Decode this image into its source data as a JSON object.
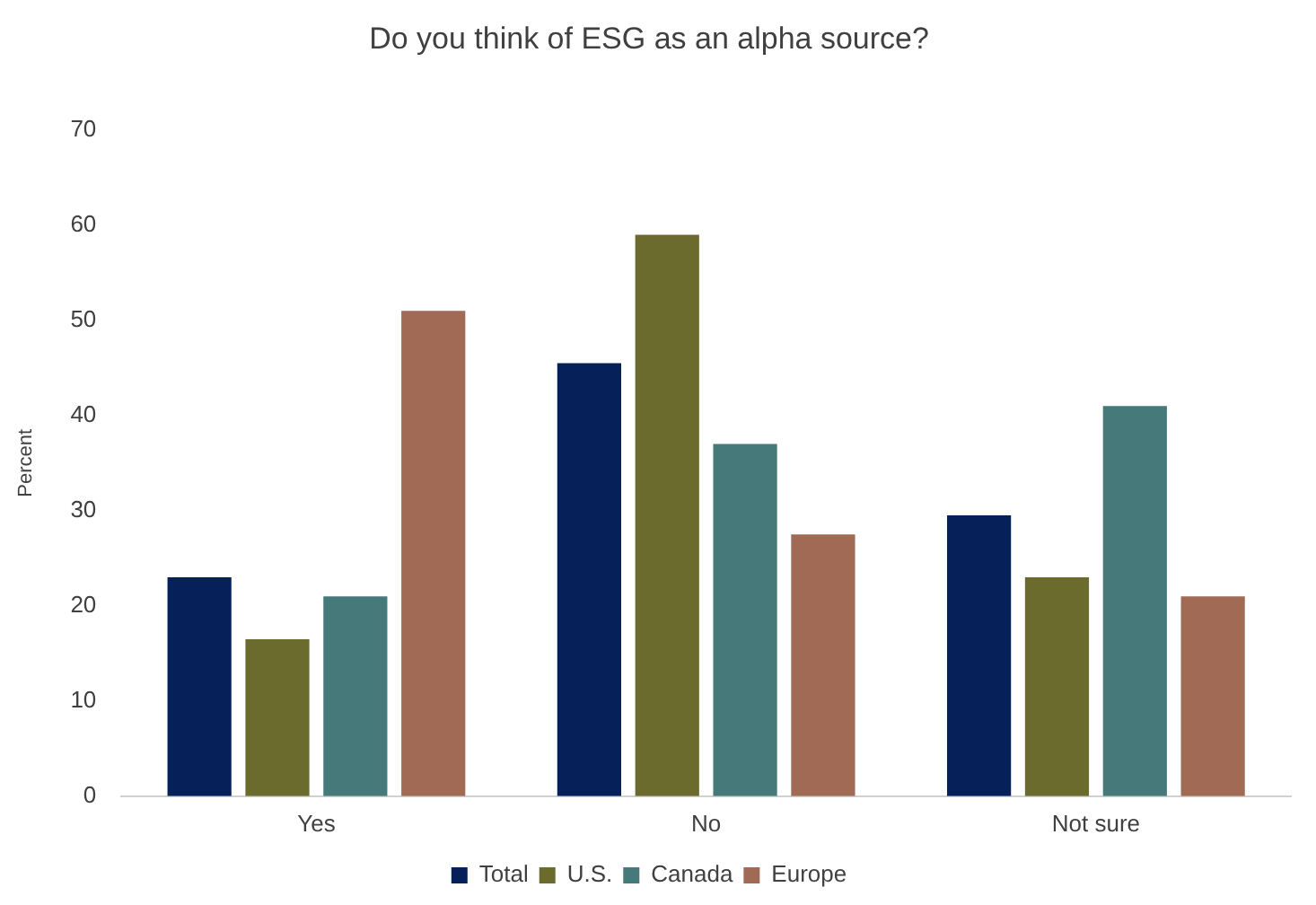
{
  "chart_data": {
    "type": "bar",
    "title": "Do you think of ESG as an alpha source?",
    "ylabel": "Percent",
    "categories": [
      "Yes",
      "No",
      "Not sure"
    ],
    "series": [
      {
        "name": "Total",
        "color": "#06215a",
        "values": [
          23,
          45.5,
          29.5
        ]
      },
      {
        "name": "U.S.",
        "color": "#6b6b2e",
        "values": [
          16.5,
          59,
          23
        ]
      },
      {
        "name": "Canada",
        "color": "#467a7a",
        "values": [
          21,
          37,
          41
        ]
      },
      {
        "name": "Europe",
        "color": "#a06a55",
        "values": [
          51,
          27.5,
          21
        ]
      }
    ],
    "ylim": [
      0,
      70
    ],
    "yticks": [
      0,
      10,
      20,
      30,
      40,
      50,
      60,
      70
    ],
    "grid": false,
    "legend": "bottom"
  }
}
